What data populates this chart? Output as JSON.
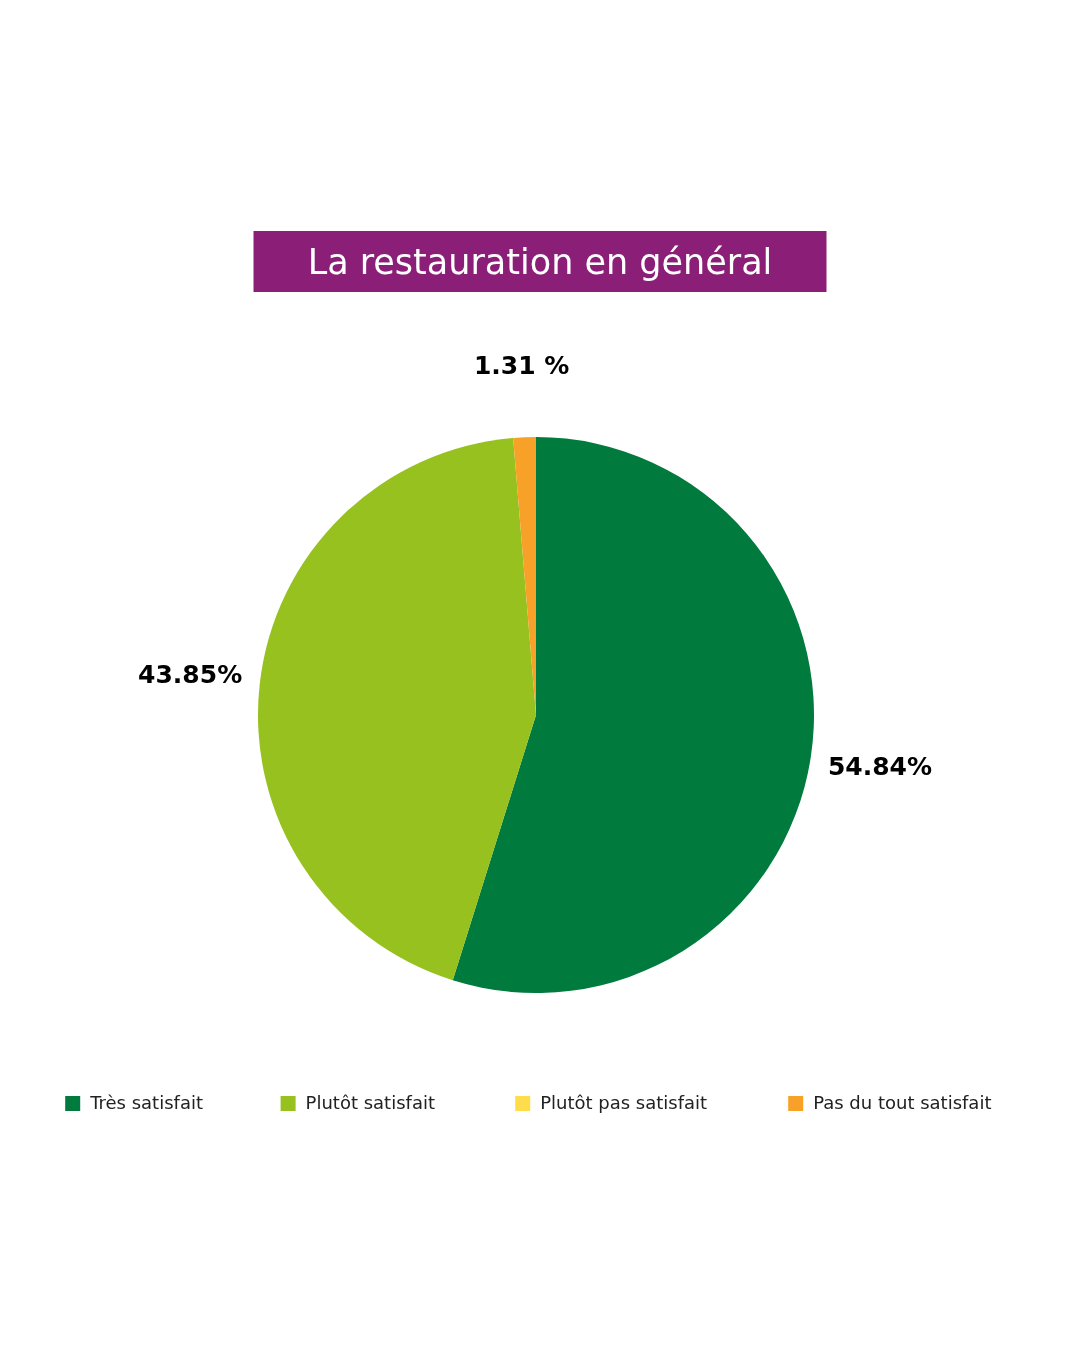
{
  "chart_data": {
    "type": "pie",
    "title": "La restauration en général",
    "categories": [
      "Très satisfait",
      "Plutôt satisfait",
      "Plutôt pas satisfait",
      "Pas du tout satisfait"
    ],
    "values": [
      54.84,
      43.85,
      0,
      1.31
    ],
    "value_labels": [
      "54.84%",
      "43.85%",
      null,
      "1.31 %"
    ],
    "colors": [
      "#007a3d",
      "#96c11f",
      "#ffdd4a",
      "#f7a128"
    ],
    "legend": "bottom"
  }
}
